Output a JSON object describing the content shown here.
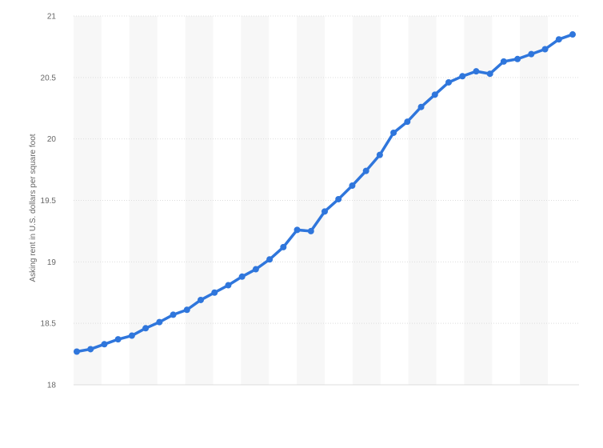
{
  "chart_data": {
    "type": "line",
    "title": "",
    "xlabel": "",
    "ylabel": "Asking rent in U.S. dollars per square foot",
    "ylim": [
      18,
      21
    ],
    "yticks": [
      "18",
      "18.5",
      "19",
      "19.5",
      "20",
      "20.5",
      "21"
    ],
    "grid": true,
    "legend": "none",
    "colors": {
      "line": "#2f76dc",
      "band": "#f7f7f7",
      "grid": "#dddddd"
    },
    "series": [
      {
        "values": [
          18.27,
          18.29,
          18.33,
          18.37,
          18.4,
          18.46,
          18.51,
          18.57,
          18.61,
          18.69,
          18.75,
          18.81,
          18.88,
          18.94,
          19.02,
          19.12,
          19.26,
          19.25,
          19.41,
          19.51,
          19.62,
          19.74,
          19.87,
          20.05,
          20.14,
          20.26,
          20.36,
          20.46,
          20.51,
          20.55,
          20.53,
          20.63,
          20.65,
          20.69,
          20.73,
          20.81,
          20.85
        ]
      }
    ]
  }
}
